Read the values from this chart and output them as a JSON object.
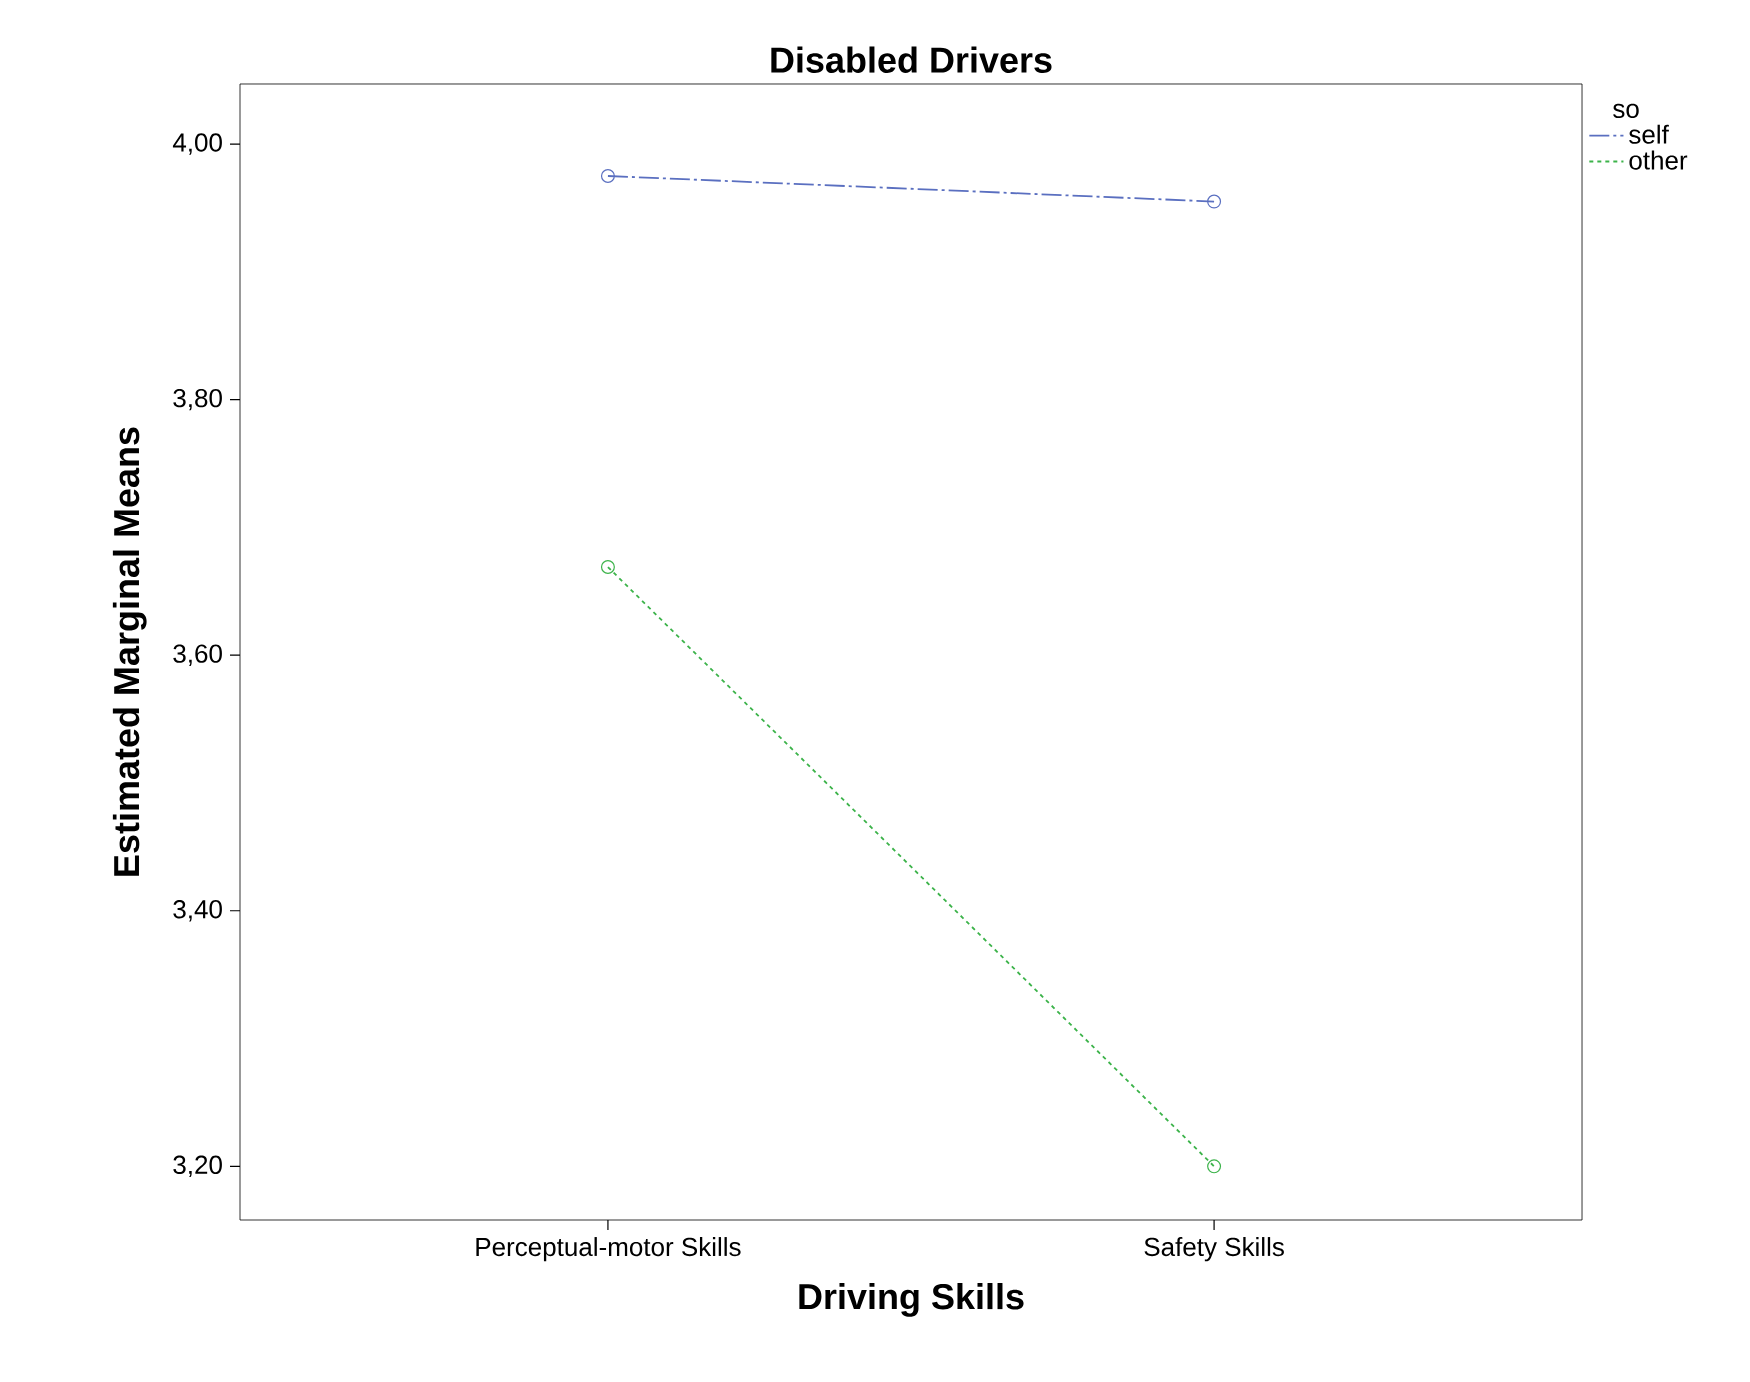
{
  "chart_data": {
    "type": "line",
    "title": "Disabled Drivers",
    "xlabel": "Driving Skills",
    "ylabel": "Estimated Marginal Means",
    "legend_title": "so",
    "categories": [
      "Perceptual-motor Skills",
      "Safety Skills"
    ],
    "series": [
      {
        "name": "self",
        "color": "#5a6fc0",
        "values": [
          3.975,
          3.955
        ],
        "line_style": "dashdot"
      },
      {
        "name": "other",
        "color": "#3cb34a",
        "values": [
          3.669,
          3.2
        ],
        "line_style": "dotted"
      }
    ],
    "ylim": [
      3.158,
      4.047
    ],
    "yticks": [
      {
        "value": 3.2,
        "label": "3,20"
      },
      {
        "value": 3.4,
        "label": "3,40"
      },
      {
        "value": 3.6,
        "label": "3,60"
      },
      {
        "value": 3.8,
        "label": "3,80"
      },
      {
        "value": 4.0,
        "label": "4,00"
      }
    ],
    "marker": "circle",
    "grid": false,
    "legend": "top right"
  }
}
